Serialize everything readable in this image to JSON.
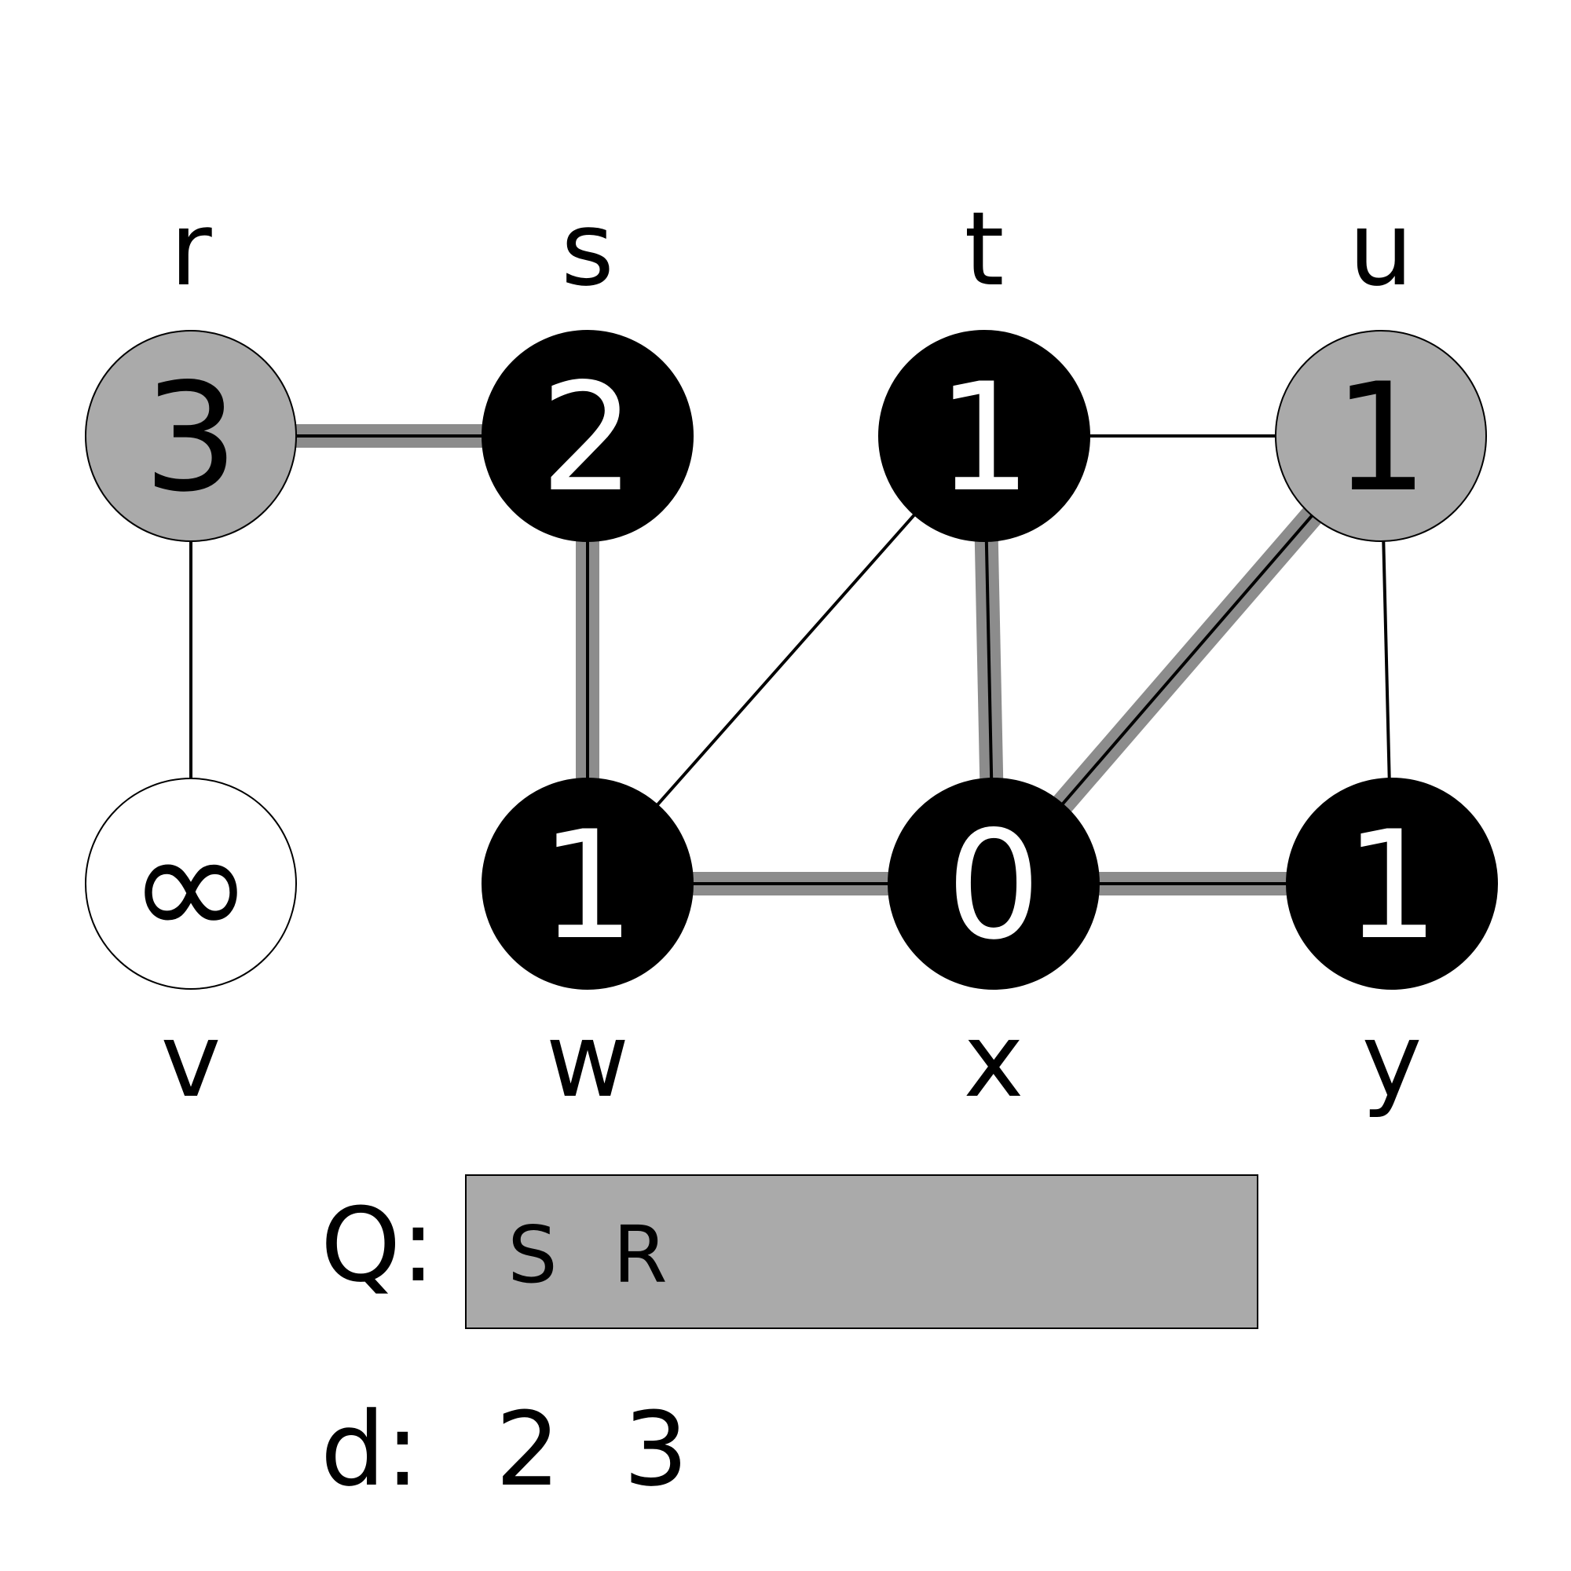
{
  "graph": {
    "vertices": [
      {
        "id": "r",
        "label": "r",
        "distance": "3",
        "color": "gray"
      },
      {
        "id": "s",
        "label": "s",
        "distance": "2",
        "color": "black"
      },
      {
        "id": "t",
        "label": "t",
        "distance": "1",
        "color": "black"
      },
      {
        "id": "u",
        "label": "u",
        "distance": "1",
        "color": "gray"
      },
      {
        "id": "v",
        "label": "v",
        "distance": "∞",
        "color": "white"
      },
      {
        "id": "w",
        "label": "w",
        "distance": "1",
        "color": "black"
      },
      {
        "id": "x",
        "label": "x",
        "distance": "0",
        "color": "black"
      },
      {
        "id": "y",
        "label": "y",
        "distance": "1",
        "color": "black"
      }
    ],
    "edges": [
      {
        "from": "r",
        "to": "s",
        "tree": true
      },
      {
        "from": "r",
        "to": "v",
        "tree": false
      },
      {
        "from": "s",
        "to": "w",
        "tree": true
      },
      {
        "from": "t",
        "to": "u",
        "tree": false
      },
      {
        "from": "t",
        "to": "w",
        "tree": false
      },
      {
        "from": "t",
        "to": "x",
        "tree": true
      },
      {
        "from": "u",
        "to": "x",
        "tree": true
      },
      {
        "from": "u",
        "to": "y",
        "tree": false
      },
      {
        "from": "w",
        "to": "x",
        "tree": true
      },
      {
        "from": "x",
        "to": "y",
        "tree": true
      }
    ]
  },
  "queue": {
    "label": "Q:",
    "items": [
      "S",
      "R"
    ]
  },
  "distances": {
    "label": "d:",
    "items": [
      "2",
      "3"
    ]
  },
  "colors": {
    "black_vertex": "#000000",
    "gray_vertex": "#aaaaaa",
    "white_vertex": "#ffffff",
    "tree_edge_highlight": "#8c8c8c",
    "queue_fill": "#aaaaaa"
  }
}
